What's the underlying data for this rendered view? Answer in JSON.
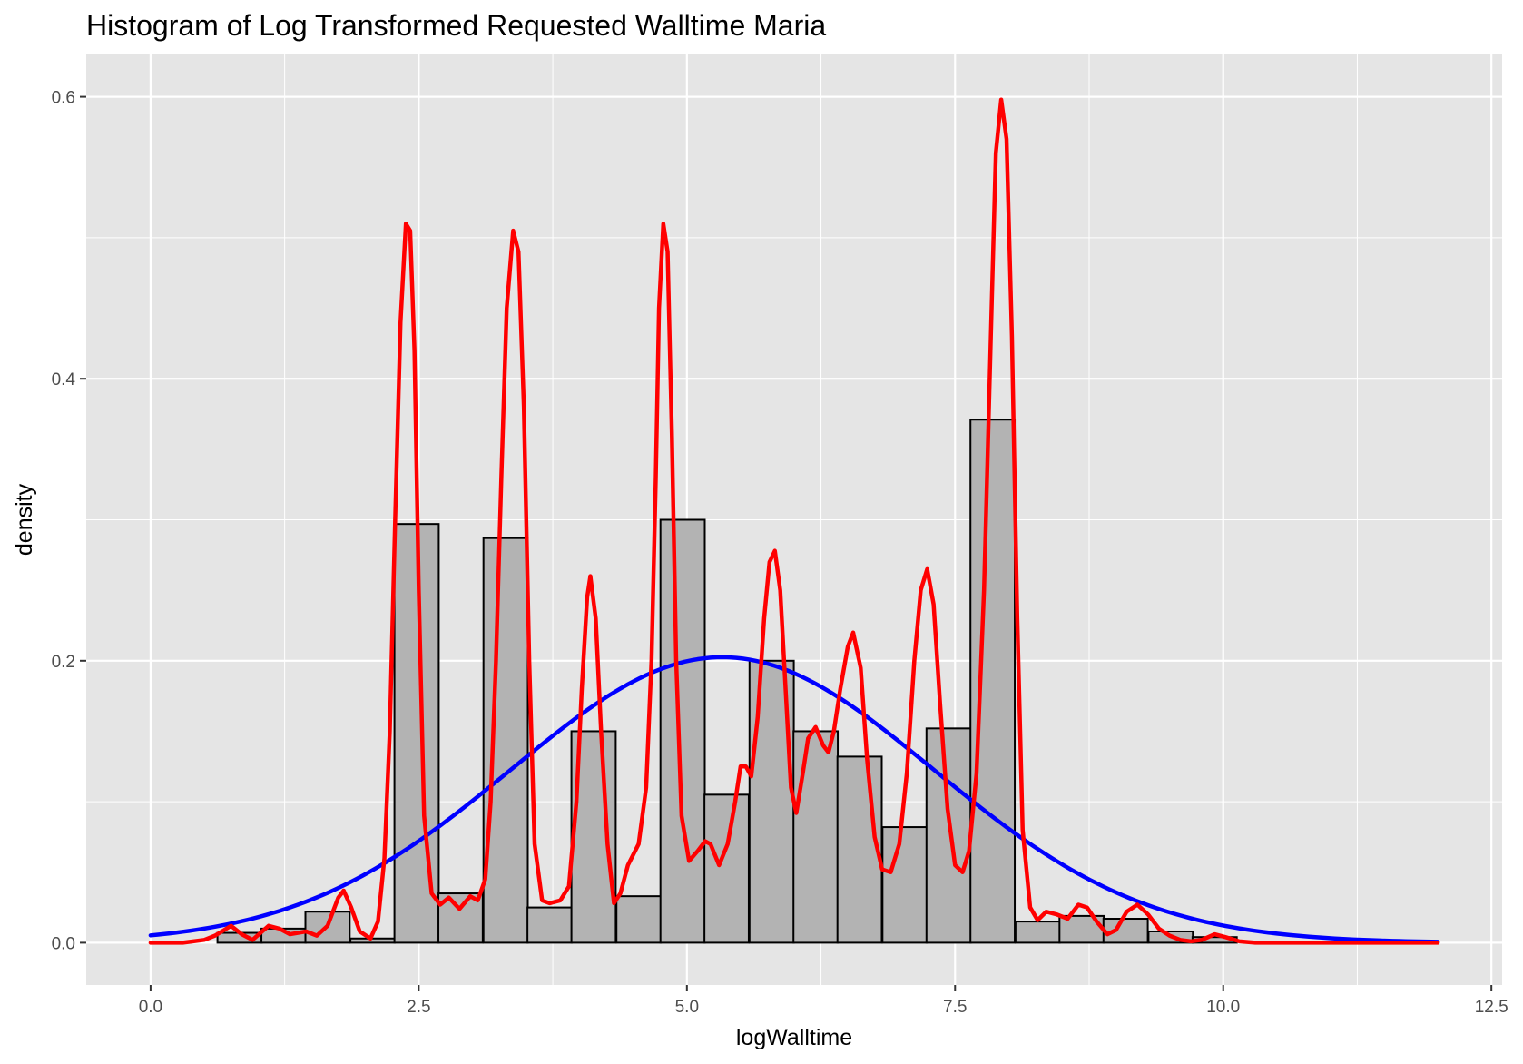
{
  "chart_data": {
    "type": "bar",
    "title": "Histogram of Log Transformed Requested Walltime Maria",
    "xlabel": "logWalltime",
    "ylabel": "density",
    "xlim": [
      -0.6,
      12.6
    ],
    "ylim": [
      -0.03,
      0.63
    ],
    "x_ticks": [
      "0.0",
      "2.5",
      "5.0",
      "7.5",
      "10.0",
      "12.5"
    ],
    "y_ticks": [
      "0.0",
      "0.2",
      "0.4",
      "0.6"
    ],
    "grid": true,
    "bar_fill": "#b3b3b3",
    "bar_stroke": "#000000",
    "panel_background": "#e5e5e5",
    "grid_color": "#ffffff",
    "histogram": {
      "bin_width": 0.413,
      "bins": [
        {
          "center": 0.83,
          "density": 0.007
        },
        {
          "center": 1.24,
          "density": 0.01
        },
        {
          "center": 1.65,
          "density": 0.022
        },
        {
          "center": 2.07,
          "density": 0.003
        },
        {
          "center": 2.48,
          "density": 0.297
        },
        {
          "center": 2.89,
          "density": 0.035
        },
        {
          "center": 3.31,
          "density": 0.287
        },
        {
          "center": 3.72,
          "density": 0.025
        },
        {
          "center": 4.13,
          "density": 0.15
        },
        {
          "center": 4.55,
          "density": 0.033
        },
        {
          "center": 4.96,
          "density": 0.3
        },
        {
          "center": 5.37,
          "density": 0.105
        },
        {
          "center": 5.79,
          "density": 0.2
        },
        {
          "center": 6.2,
          "density": 0.15
        },
        {
          "center": 6.61,
          "density": 0.132
        },
        {
          "center": 7.03,
          "density": 0.082
        },
        {
          "center": 7.44,
          "density": 0.152
        },
        {
          "center": 7.85,
          "density": 0.371
        },
        {
          "center": 8.27,
          "density": 0.015
        },
        {
          "center": 8.68,
          "density": 0.019
        },
        {
          "center": 9.09,
          "density": 0.017
        },
        {
          "center": 9.51,
          "density": 0.008
        },
        {
          "center": 9.92,
          "density": 0.004
        }
      ]
    },
    "series": [
      {
        "kind": "normal_fit",
        "color": "#0000ff",
        "mean": 5.33,
        "sd": 1.97,
        "x_range": [
          0,
          12
        ]
      },
      {
        "kind": "kernel_density",
        "color": "#ff0000",
        "points": [
          [
            0.0,
            0.0
          ],
          [
            0.3,
            0.0
          ],
          [
            0.5,
            0.002
          ],
          [
            0.6,
            0.005
          ],
          [
            0.75,
            0.012
          ],
          [
            0.85,
            0.006
          ],
          [
            0.95,
            0.002
          ],
          [
            1.1,
            0.012
          ],
          [
            1.2,
            0.01
          ],
          [
            1.3,
            0.006
          ],
          [
            1.45,
            0.008
          ],
          [
            1.55,
            0.005
          ],
          [
            1.65,
            0.012
          ],
          [
            1.75,
            0.032
          ],
          [
            1.8,
            0.037
          ],
          [
            1.87,
            0.025
          ],
          [
            1.95,
            0.008
          ],
          [
            2.05,
            0.003
          ],
          [
            2.12,
            0.015
          ],
          [
            2.18,
            0.06
          ],
          [
            2.23,
            0.15
          ],
          [
            2.28,
            0.3
          ],
          [
            2.33,
            0.44
          ],
          [
            2.38,
            0.51
          ],
          [
            2.42,
            0.505
          ],
          [
            2.46,
            0.42
          ],
          [
            2.5,
            0.25
          ],
          [
            2.55,
            0.09
          ],
          [
            2.62,
            0.035
          ],
          [
            2.7,
            0.027
          ],
          [
            2.78,
            0.032
          ],
          [
            2.88,
            0.024
          ],
          [
            2.98,
            0.033
          ],
          [
            3.05,
            0.03
          ],
          [
            3.12,
            0.045
          ],
          [
            3.17,
            0.1
          ],
          [
            3.22,
            0.2
          ],
          [
            3.27,
            0.33
          ],
          [
            3.32,
            0.45
          ],
          [
            3.38,
            0.505
          ],
          [
            3.43,
            0.49
          ],
          [
            3.48,
            0.38
          ],
          [
            3.53,
            0.2
          ],
          [
            3.58,
            0.07
          ],
          [
            3.65,
            0.03
          ],
          [
            3.72,
            0.028
          ],
          [
            3.82,
            0.03
          ],
          [
            3.9,
            0.04
          ],
          [
            3.97,
            0.1
          ],
          [
            4.02,
            0.18
          ],
          [
            4.07,
            0.245
          ],
          [
            4.1,
            0.26
          ],
          [
            4.15,
            0.23
          ],
          [
            4.2,
            0.15
          ],
          [
            4.26,
            0.07
          ],
          [
            4.32,
            0.028
          ],
          [
            4.38,
            0.035
          ],
          [
            4.45,
            0.055
          ],
          [
            4.55,
            0.07
          ],
          [
            4.62,
            0.11
          ],
          [
            4.67,
            0.2
          ],
          [
            4.71,
            0.33
          ],
          [
            4.74,
            0.45
          ],
          [
            4.78,
            0.51
          ],
          [
            4.82,
            0.49
          ],
          [
            4.86,
            0.36
          ],
          [
            4.9,
            0.2
          ],
          [
            4.95,
            0.09
          ],
          [
            5.02,
            0.058
          ],
          [
            5.1,
            0.065
          ],
          [
            5.17,
            0.072
          ],
          [
            5.22,
            0.07
          ],
          [
            5.3,
            0.055
          ],
          [
            5.38,
            0.07
          ],
          [
            5.45,
            0.1
          ],
          [
            5.5,
            0.125
          ],
          [
            5.55,
            0.125
          ],
          [
            5.6,
            0.118
          ],
          [
            5.66,
            0.16
          ],
          [
            5.72,
            0.23
          ],
          [
            5.77,
            0.27
          ],
          [
            5.82,
            0.278
          ],
          [
            5.87,
            0.25
          ],
          [
            5.92,
            0.18
          ],
          [
            5.97,
            0.11
          ],
          [
            6.02,
            0.092
          ],
          [
            6.08,
            0.12
          ],
          [
            6.13,
            0.145
          ],
          [
            6.2,
            0.153
          ],
          [
            6.27,
            0.14
          ],
          [
            6.32,
            0.135
          ],
          [
            6.37,
            0.15
          ],
          [
            6.43,
            0.18
          ],
          [
            6.5,
            0.21
          ],
          [
            6.55,
            0.22
          ],
          [
            6.62,
            0.195
          ],
          [
            6.68,
            0.13
          ],
          [
            6.75,
            0.075
          ],
          [
            6.82,
            0.052
          ],
          [
            6.9,
            0.05
          ],
          [
            6.98,
            0.07
          ],
          [
            7.05,
            0.12
          ],
          [
            7.12,
            0.2
          ],
          [
            7.18,
            0.25
          ],
          [
            7.24,
            0.265
          ],
          [
            7.3,
            0.24
          ],
          [
            7.36,
            0.17
          ],
          [
            7.43,
            0.095
          ],
          [
            7.5,
            0.055
          ],
          [
            7.57,
            0.05
          ],
          [
            7.63,
            0.065
          ],
          [
            7.7,
            0.12
          ],
          [
            7.77,
            0.25
          ],
          [
            7.83,
            0.42
          ],
          [
            7.88,
            0.56
          ],
          [
            7.93,
            0.598
          ],
          [
            7.98,
            0.57
          ],
          [
            8.03,
            0.43
          ],
          [
            8.08,
            0.23
          ],
          [
            8.13,
            0.08
          ],
          [
            8.2,
            0.025
          ],
          [
            8.27,
            0.016
          ],
          [
            8.35,
            0.022
          ],
          [
            8.45,
            0.02
          ],
          [
            8.55,
            0.017
          ],
          [
            8.65,
            0.027
          ],
          [
            8.73,
            0.025
          ],
          [
            8.82,
            0.015
          ],
          [
            8.92,
            0.006
          ],
          [
            9.0,
            0.009
          ],
          [
            9.1,
            0.022
          ],
          [
            9.2,
            0.027
          ],
          [
            9.3,
            0.02
          ],
          [
            9.4,
            0.01
          ],
          [
            9.5,
            0.005
          ],
          [
            9.6,
            0.002
          ],
          [
            9.7,
            0.001
          ],
          [
            9.8,
            0.002
          ],
          [
            9.92,
            0.006
          ],
          [
            10.02,
            0.004
          ],
          [
            10.15,
            0.001
          ],
          [
            10.3,
            0.0
          ],
          [
            10.6,
            0.0
          ],
          [
            12.0,
            0.0
          ]
        ]
      }
    ]
  }
}
